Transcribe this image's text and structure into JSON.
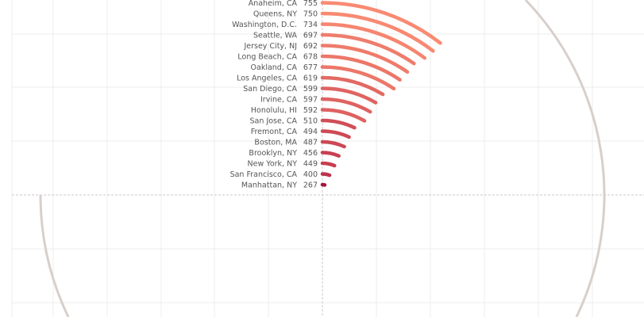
{
  "chart_data": {
    "type": "radial-bar",
    "title": "",
    "categories": [
      "Anaheim, CA",
      "Queens, NY",
      "Washington, D.C.",
      "Seattle, WA",
      "Jersey City, NJ",
      "Long Beach, CA",
      "Oakland, CA",
      "Los Angeles, CA",
      "San Diego, CA",
      "Irvine, CA",
      "Honolulu, HI",
      "San Jose, CA",
      "Fremont, CA",
      "Boston, MA",
      "Brooklyn, NY",
      "New York, NY",
      "San Francisco, CA",
      "Manhattan, NY"
    ],
    "values": [
      755,
      750,
      734,
      697,
      692,
      678,
      677,
      619,
      599,
      597,
      592,
      510,
      494,
      487,
      456,
      449,
      400,
      267
    ],
    "value_labels": [
      "755",
      "750",
      "734",
      "697",
      "692",
      "678",
      "677",
      "619",
      "599",
      "597",
      "592",
      "510",
      "494",
      "487",
      "456",
      "449",
      "400",
      "267"
    ],
    "colors": {
      "low": "#a8123c",
      "high": "#f98a72",
      "ring": "#d8cfcb",
      "grid": "#ececec"
    },
    "grid": true
  }
}
